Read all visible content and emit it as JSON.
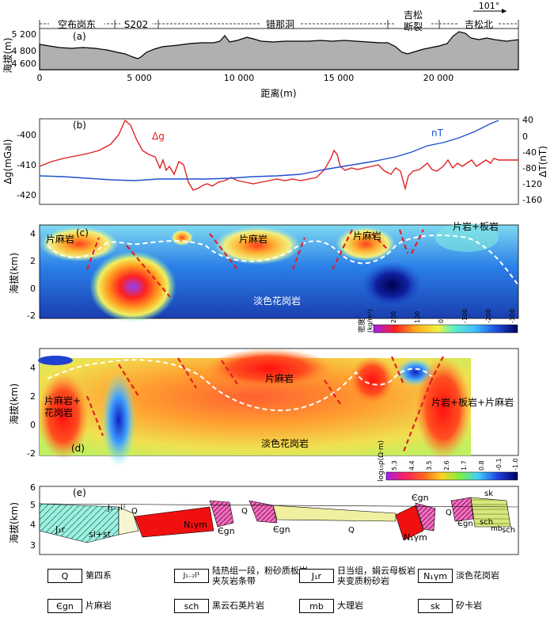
{
  "panel_a": {
    "label": "(a)",
    "ylabel": "海拔(m)",
    "yticks": [
      "5 200",
      "4 800",
      "4 600"
    ],
    "xticks": [
      "0",
      "5 000",
      "10 000",
      "15 000",
      "20 000"
    ],
    "xlabel": "距离(m)",
    "regions": [
      "空布岗东",
      "S202",
      "错那洞",
      "吉松",
      "断裂",
      "吉松北"
    ],
    "azimuth": "101°"
  },
  "panel_b": {
    "label": "(b)",
    "ylabel_left": "Δg(mGal)",
    "ylabel_right": "ΔT(nT)",
    "yticks_left": [
      "-400",
      "-410",
      "-420"
    ],
    "yticks_right": [
      "40",
      "0",
      "-40",
      "-80",
      "-120",
      "-160"
    ],
    "series_dg": "Δg",
    "series_nt": "nT",
    "color_dg": "#e02020",
    "color_nt": "#2050d0"
  },
  "panel_c": {
    "label": "(c)",
    "ylabel": "海拔(km)",
    "yticks": [
      "4",
      "2",
      "0",
      "-2"
    ],
    "labels": [
      "片麻岩",
      "片麻岩",
      "片麻岩",
      "片岩+板岩",
      "淡色花岗岩"
    ],
    "colorbar_title": "密度",
    "colorbar_unit": "(kg/m³)",
    "colorbar_ticks": [
      "200",
      "100",
      "0",
      "-100",
      "-200",
      "-300"
    ]
  },
  "panel_d": {
    "label": "(d)",
    "ylabel": "海拔(km)",
    "yticks": [
      "4",
      "2",
      "0",
      "-2"
    ],
    "labels": [
      "片麻岩",
      "片麻岩+",
      "花岗岩",
      "片岩+板岩+片麻岩",
      "淡色花岗岩"
    ],
    "colorbar_title": "log₁₀ρ(Ω·m)",
    "colorbar_ticks": [
      "5.3",
      "4.4",
      "3.5",
      "2.6",
      "1.7",
      "0.8",
      "-0.1",
      "-1.0"
    ]
  },
  "panel_e": {
    "label": "(e)",
    "ylabel": "海拔(km)",
    "yticks": [
      "6",
      "5",
      "4",
      "3"
    ],
    "labels": [
      "J₁r",
      "sl+st",
      "J₁₋₂l¹",
      "Q",
      "N₁γm",
      "Єgn",
      "Q",
      "Єgn",
      "Q",
      "Єgn",
      "N₁γm",
      "Q",
      "Єgn",
      "sch",
      "mb",
      "sk",
      "sch"
    ]
  },
  "legend": [
    {
      "code": "Q",
      "text": "第四系"
    },
    {
      "code": "J₁₋₂l¹",
      "text": "陆热组一段，粉砂质板岩\n夹灰岩条带"
    },
    {
      "code": "J₁r",
      "text": "日当组，娟云母板岩\n夹变质粉砂岩"
    },
    {
      "code": "N₁γm",
      "text": "淡色花岗岩"
    },
    {
      "code": "Єgn",
      "text": "片麻岩"
    },
    {
      "code": "sch",
      "text": "黑云石英片岩"
    },
    {
      "code": "mb",
      "text": "大理岩"
    },
    {
      "code": "sk",
      "text": "矽卡岩"
    }
  ]
}
